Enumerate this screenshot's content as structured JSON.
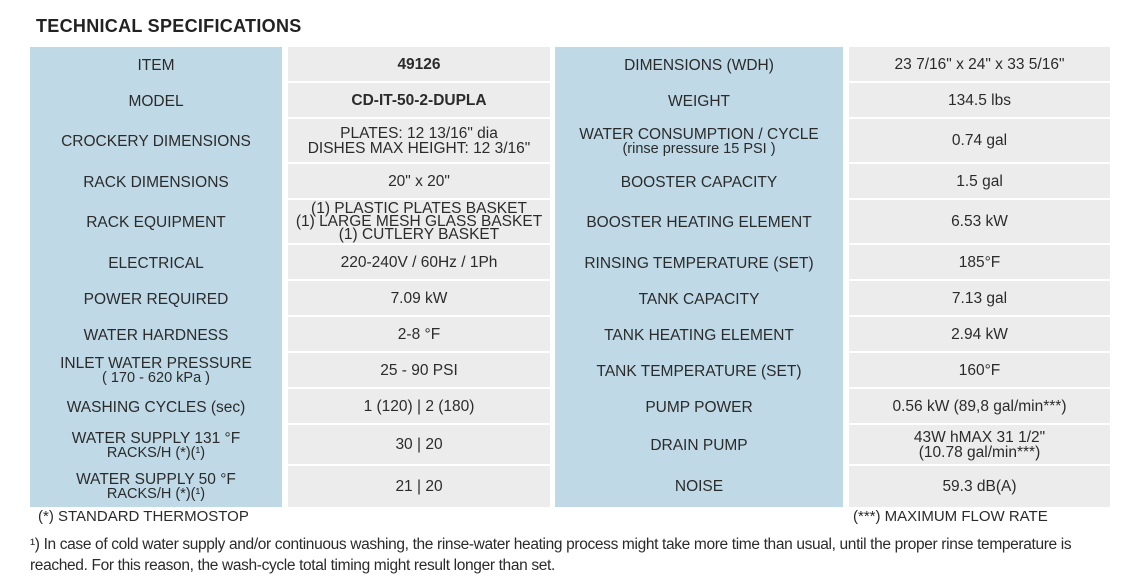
{
  "title": "TECHNICAL SPECIFICATIONS",
  "left_rows": [
    {
      "label": [
        "ITEM"
      ],
      "value": [
        "49126"
      ],
      "value_bold": true
    },
    {
      "label": [
        "MODEL"
      ],
      "value": [
        "CD-IT-50-2-DUPLA"
      ],
      "value_bold": true
    },
    {
      "label": [
        "CROCKERY DIMENSIONS"
      ],
      "value": [
        "PLATES: 12 13/16\" dia",
        "DISHES MAX HEIGHT: 12 3/16\""
      ]
    },
    {
      "label": [
        "RACK DIMENSIONS"
      ],
      "value": [
        "20\" x 20\""
      ]
    },
    {
      "label": [
        "RACK EQUIPMENT"
      ],
      "value": [
        "(1) PLASTIC PLATES BASKET",
        "(1) LARGE MESH GLASS BASKET",
        "(1) CUTLERY BASKET"
      ]
    },
    {
      "label": [
        "ELECTRICAL"
      ],
      "value": [
        "220-240V / 60Hz / 1Ph"
      ]
    },
    {
      "label": [
        "POWER REQUIRED"
      ],
      "value": [
        "7.09 kW"
      ]
    },
    {
      "label": [
        "WATER HARDNESS"
      ],
      "value": [
        "2-8 °F"
      ]
    },
    {
      "label": [
        "INLET WATER PRESSURE",
        "( 170 - 620 kPa )"
      ],
      "value": [
        "25 - 90 PSI"
      ]
    },
    {
      "label": [
        "WASHING CYCLES (sec)"
      ],
      "value": [
        "1 (120)  |  2 (180)"
      ]
    },
    {
      "label": [
        "WATER SUPPLY 131 °F",
        "RACKS/H (*)(¹)"
      ],
      "value": [
        "30  |  20"
      ]
    },
    {
      "label": [
        "WATER SUPPLY 50 °F",
        "RACKS/H (*)(¹)"
      ],
      "value": [
        "21  |  20"
      ]
    }
  ],
  "right_rows": [
    {
      "label": [
        "DIMENSIONS (WDH)"
      ],
      "value": [
        "23 7/16\" x 24\" x 33 5/16\""
      ]
    },
    {
      "label": [
        "WEIGHT"
      ],
      "value": [
        "134.5 lbs"
      ]
    },
    {
      "label": [
        "WATER CONSUMPTION / CYCLE",
        "(rinse pressure 15 PSI )"
      ],
      "value": [
        "0.74 gal"
      ]
    },
    {
      "label": [
        "BOOSTER CAPACITY"
      ],
      "value": [
        "1.5 gal"
      ]
    },
    {
      "label": [
        "BOOSTER HEATING ELEMENT"
      ],
      "value": [
        "6.53  kW"
      ]
    },
    {
      "label": [
        "RINSING TEMPERATURE (SET)"
      ],
      "value": [
        "185°F"
      ]
    },
    {
      "label": [
        "TANK CAPACITY"
      ],
      "value": [
        "7.13 gal"
      ]
    },
    {
      "label": [
        "TANK HEATING ELEMENT"
      ],
      "value": [
        "2.94 kW"
      ]
    },
    {
      "label": [
        "TANK TEMPERATURE (SET)"
      ],
      "value": [
        "160°F"
      ]
    },
    {
      "label": [
        "PUMP POWER"
      ],
      "value": [
        "0.56 kW (89,8 gal/min***)"
      ]
    },
    {
      "label": [
        "DRAIN PUMP"
      ],
      "value": [
        "43W hMAX 31 1/2\"",
        "(10.78 gal/min***)"
      ]
    },
    {
      "label": [
        "NOISE"
      ],
      "value": [
        "59.3 dB(A)"
      ]
    }
  ],
  "footnote_left": "(*) STANDARD THERMOSTOP",
  "footnote_right": "(***) MAXIMUM FLOW RATE",
  "note": "¹) In case of cold water supply and/or continuous washing, the rinse-water heating process might take more time than usual, until the proper rinse temperature is reached. For this reason, the wash-cycle total timing might result longer than set."
}
